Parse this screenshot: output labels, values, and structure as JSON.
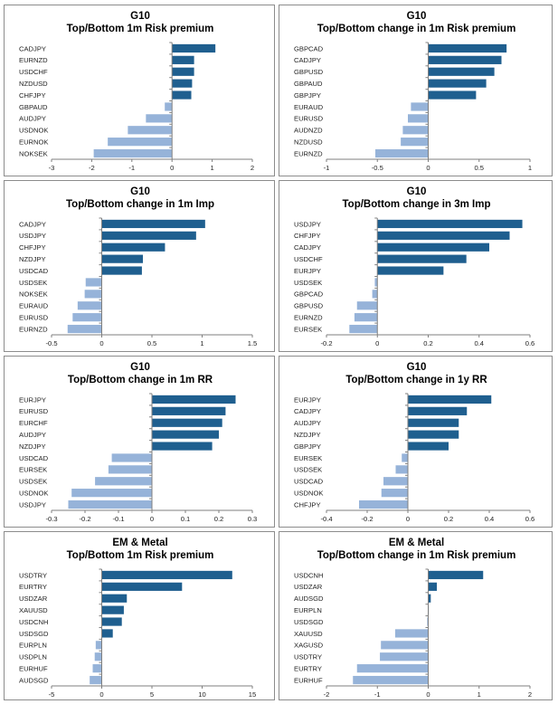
{
  "colors": {
    "positive": "#1f5f8f",
    "negative": "#96b3d9",
    "axis": "#7f7f7f"
  },
  "chart_data": [
    {
      "type": "bar",
      "orientation": "horizontal",
      "title": [
        "G10",
        "Top/Bottom 1m Risk premium"
      ],
      "categories": [
        "CADJPY",
        "EURNZD",
        "USDCHF",
        "NZDUSD",
        "CHFJPY",
        "GBPAUD",
        "AUDJPY",
        "USDNOK",
        "EURNOK",
        "NOKSEK"
      ],
      "values": [
        1.08,
        0.55,
        0.55,
        0.5,
        0.48,
        -0.18,
        -0.65,
        -1.1,
        -1.6,
        -1.95
      ],
      "xlim": [
        -3,
        2
      ],
      "xticks": [
        -3,
        -2,
        -1,
        0,
        1,
        2
      ],
      "xtick_labels": [
        "-3",
        "-2",
        "-1",
        "0",
        "1",
        "2"
      ]
    },
    {
      "type": "bar",
      "orientation": "horizontal",
      "title": [
        "G10",
        "Top/Bottom change in 1m Risk premium"
      ],
      "categories": [
        "GBPCAD",
        "CADJPY",
        "GBPUSD",
        "GBPAUD",
        "GBPJPY",
        "EURAUD",
        "EURUSD",
        "AUDNZD",
        "NZDUSD",
        "EURNZD"
      ],
      "values": [
        0.77,
        0.72,
        0.65,
        0.57,
        0.47,
        -0.17,
        -0.2,
        -0.25,
        -0.27,
        -0.52
      ],
      "xlim": [
        -1,
        1
      ],
      "xticks": [
        -1,
        -0.5,
        0,
        0.5,
        1
      ],
      "xtick_labels": [
        "-1",
        "-0.5",
        "0",
        "0.5",
        "1"
      ]
    },
    {
      "type": "bar",
      "orientation": "horizontal",
      "title": [
        "G10",
        "Top/Bottom change in 1m Imp"
      ],
      "categories": [
        "CADJPY",
        "USDJPY",
        "CHFJPY",
        "NZDJPY",
        "USDCAD",
        "USDSEK",
        "NOKSEK",
        "EURAUD",
        "EURUSD",
        "EURNZD"
      ],
      "values": [
        1.03,
        0.94,
        0.63,
        0.41,
        0.4,
        -0.16,
        -0.17,
        -0.24,
        -0.29,
        -0.34
      ],
      "xlim": [
        -0.5,
        1.5
      ],
      "xticks": [
        -0.5,
        0,
        0.5,
        1,
        1.5
      ],
      "xtick_labels": [
        "-0.5",
        "0",
        "0.5",
        "1",
        "1.5"
      ]
    },
    {
      "type": "bar",
      "orientation": "horizontal",
      "title": [
        "G10",
        "Top/Bottom change in 3m Imp"
      ],
      "categories": [
        "USDJPY",
        "CHFJPY",
        "CADJPY",
        "USDCHF",
        "EURJPY",
        "USDSEK",
        "GBPCAD",
        "GBPUSD",
        "EURNZD",
        "EURSEK"
      ],
      "values": [
        0.57,
        0.52,
        0.44,
        0.35,
        0.26,
        -0.01,
        -0.02,
        -0.08,
        -0.09,
        -0.11
      ],
      "xlim": [
        -0.2,
        0.6
      ],
      "xticks": [
        -0.2,
        0,
        0.2,
        0.4,
        0.6
      ],
      "xtick_labels": [
        "-0.2",
        "0",
        "0.2",
        "0.4",
        "0.6"
      ]
    },
    {
      "type": "bar",
      "orientation": "horizontal",
      "title": [
        "G10",
        "Top/Bottom change in 1m RR"
      ],
      "categories": [
        "EURJPY",
        "EURUSD",
        "EURCHF",
        "AUDJPY",
        "NZDJPY",
        "USDCAD",
        "EURSEK",
        "USDSEK",
        "USDNOK",
        "USDJPY"
      ],
      "values": [
        0.25,
        0.22,
        0.21,
        0.2,
        0.18,
        -0.12,
        -0.13,
        -0.17,
        -0.24,
        -0.25
      ],
      "xlim": [
        -0.3,
        0.3
      ],
      "xticks": [
        -0.3,
        -0.2,
        -0.1,
        0,
        0.1,
        0.2,
        0.3
      ],
      "xtick_labels": [
        "-0.3",
        "-0.2",
        "-0.1",
        "0",
        "0.1",
        "0.2",
        "0.3"
      ]
    },
    {
      "type": "bar",
      "orientation": "horizontal",
      "title": [
        "G10",
        "Top/Bottom change in 1y RR"
      ],
      "categories": [
        "EURJPY",
        "CADJPY",
        "AUDJPY",
        "NZDJPY",
        "GBPJPY",
        "EURSEK",
        "USDSEK",
        "USDCAD",
        "USDNOK",
        "CHFJPY"
      ],
      "values": [
        0.41,
        0.29,
        0.25,
        0.25,
        0.2,
        -0.03,
        -0.06,
        -0.12,
        -0.13,
        -0.24
      ],
      "xlim": [
        -0.4,
        0.6
      ],
      "xticks": [
        -0.4,
        -0.2,
        0,
        0.2,
        0.4,
        0.6
      ],
      "xtick_labels": [
        "-0.4",
        "-0.2",
        "0",
        "0.2",
        "0.4",
        "0.6"
      ]
    },
    {
      "type": "bar",
      "orientation": "horizontal",
      "title": [
        "EM & Metal",
        "Top/Bottom 1m Risk premium"
      ],
      "categories": [
        "USDTRY",
        "EURTRY",
        "USDZAR",
        "XAUUSD",
        "USDCNH",
        "USDSGD",
        "EURPLN",
        "USDPLN",
        "EURHUF",
        "AUDSGD"
      ],
      "values": [
        13.0,
        8.0,
        2.5,
        2.2,
        2.0,
        1.1,
        -0.6,
        -0.7,
        -0.9,
        -1.2
      ],
      "xlim": [
        -5,
        15
      ],
      "xticks": [
        -5,
        0,
        5,
        10,
        15
      ],
      "xtick_labels": [
        "-5",
        "0",
        "5",
        "10",
        "15"
      ]
    },
    {
      "type": "bar",
      "orientation": "horizontal",
      "title": [
        "EM & Metal",
        "Top/Bottom change in 1m Risk premium"
      ],
      "categories": [
        "USDCNH",
        "USDZAR",
        "AUDSGD",
        "EURPLN",
        "USDSGD",
        "XAUUSD",
        "XAGUSD",
        "USDTRY",
        "EURTRY",
        "EURHUF"
      ],
      "values": [
        1.08,
        0.17,
        0.05,
        0.0,
        -0.02,
        -0.65,
        -0.93,
        -0.95,
        -1.4,
        -1.48
      ],
      "xlim": [
        -2,
        2
      ],
      "xticks": [
        -2,
        -1,
        0,
        1,
        2
      ],
      "xtick_labels": [
        "-2",
        "-1",
        "0",
        "1",
        "2"
      ]
    }
  ]
}
